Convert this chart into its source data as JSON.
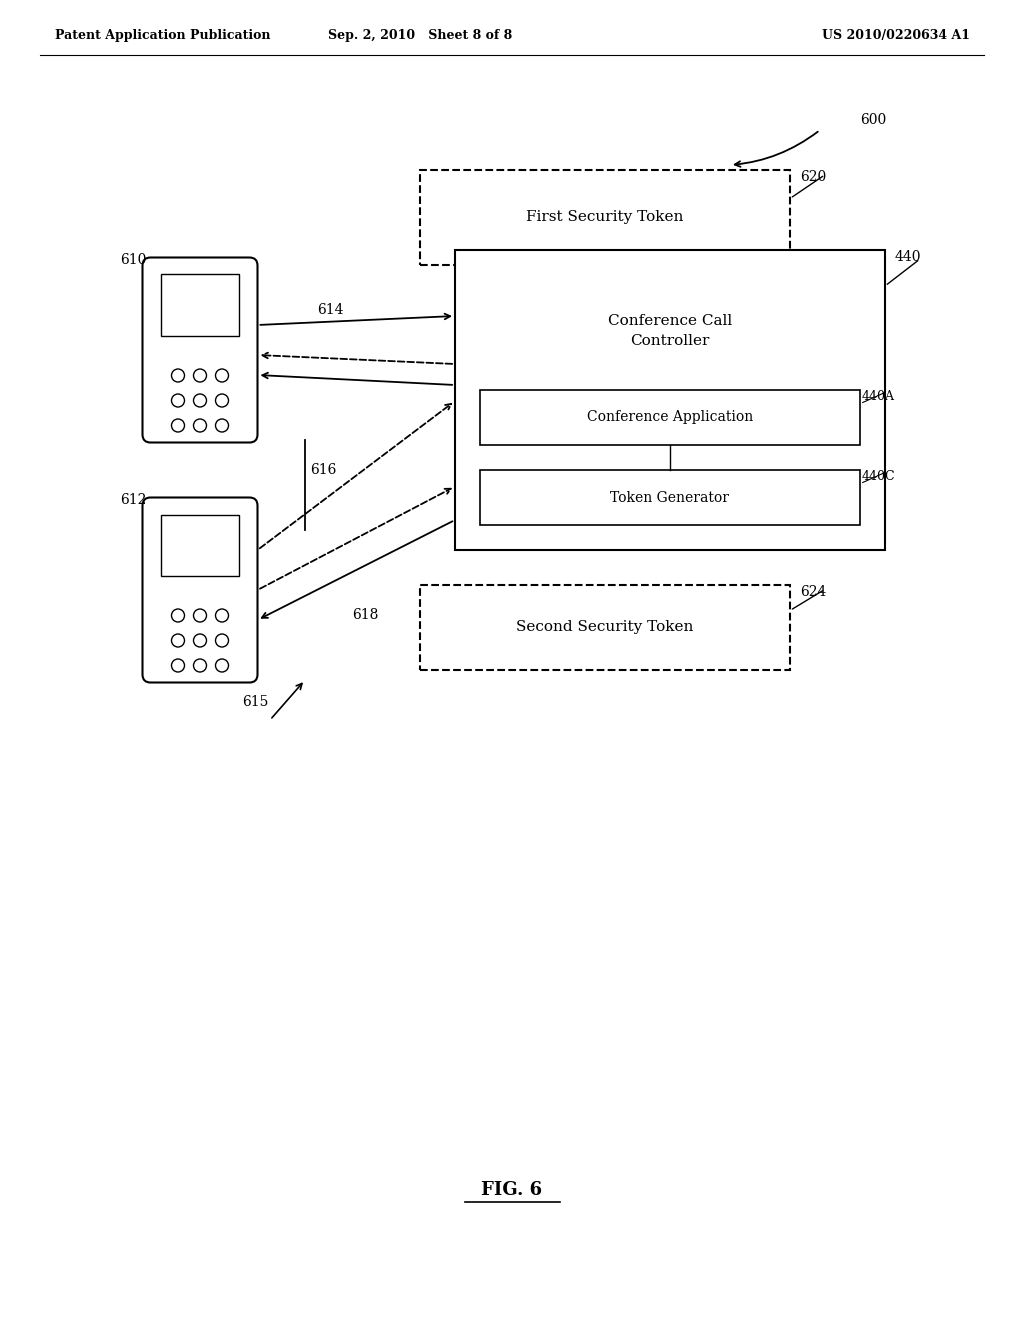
{
  "bg_color": "#ffffff",
  "header_left": "Patent Application Publication",
  "header_mid": "Sep. 2, 2010   Sheet 8 of 8",
  "header_right": "US 2010/0220634 A1",
  "fig_label": "FIG. 6",
  "label_600": "600",
  "label_610": "610",
  "label_612": "612",
  "label_614": "614",
  "label_615": "615",
  "label_616": "616",
  "label_618": "618",
  "label_620": "620",
  "label_624": "624",
  "label_440": "440",
  "label_440A": "440A",
  "label_440C": "440C",
  "text_ccc": "Conference Call\nController",
  "text_conf_app": "Conference Application",
  "text_tok_gen": "Token Generator",
  "text_first_token": "First Security Token",
  "text_second_token": "Second Security Token"
}
